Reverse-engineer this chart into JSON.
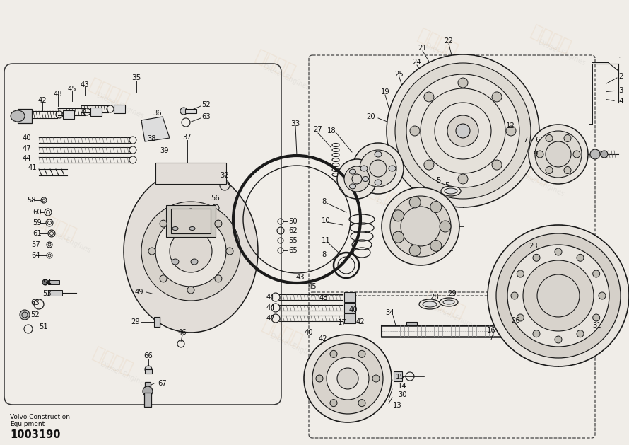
{
  "bg_color": "#f0ede8",
  "line_color": "#1a1a1a",
  "fill_light": "#e8e4de",
  "fill_mid": "#d8d4ce",
  "footer_line1": "Volvo Construction",
  "footer_line2": "Equipment",
  "footer_part": "1003190",
  "watermark_cn": "紫发动力",
  "watermark_en": "Diesel-Engines"
}
